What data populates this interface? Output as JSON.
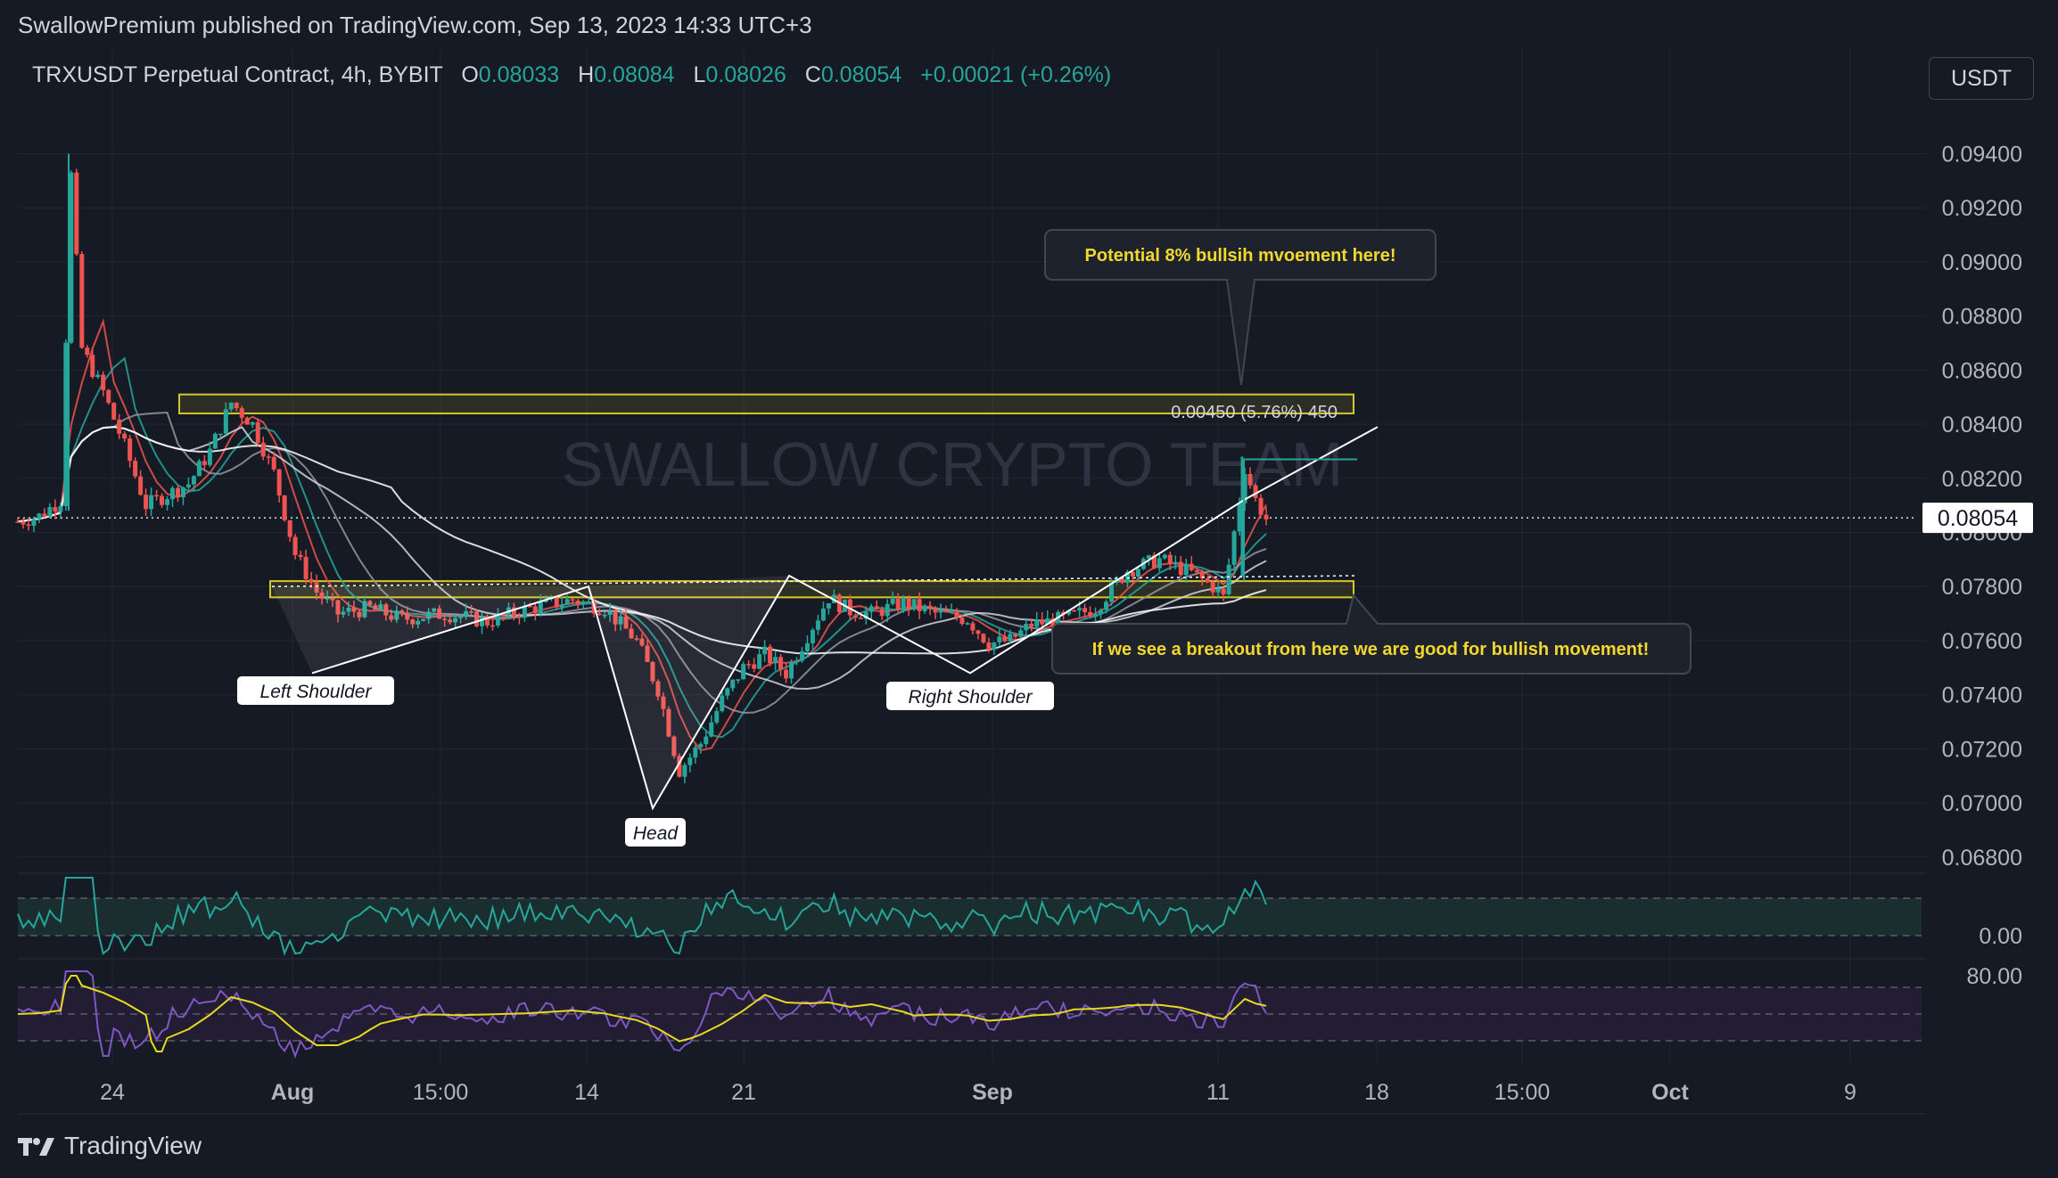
{
  "header": {
    "publisher": "SwallowPremium published on TradingView.com, Sep 13, 2023 14:33 UTC+3"
  },
  "symbol": {
    "title": "TRXUSDT Perpetual Contract, 4h, BYBIT",
    "o_label": "O",
    "o": "0.08033",
    "h_label": "H",
    "h": "0.08084",
    "l_label": "L",
    "l": "0.08026",
    "c_label": "C",
    "c": "0.08054",
    "change": "+0.00021 (+0.26%)"
  },
  "currency_button": "USDT",
  "footer": {
    "brand": "TradingView"
  },
  "colors": {
    "background": "#161a25",
    "up": "#26a69a",
    "down": "#ef5350",
    "zone": "#d4c82a",
    "annotation_text": "#f2d82c",
    "indicator1": "#26a69a",
    "indicator2_line": "#7e57c2",
    "indicator2_signal": "#e6d91f"
  },
  "chart_data": {
    "type": "candlestick",
    "title": "TRXUSDT Perpetual Contract, 4h, BYBIT",
    "watermark": "SWALLOW CRYPTO TEAM",
    "last_price": "0.08054",
    "y_ticks": [
      "0.09400",
      "0.09200",
      "0.09000",
      "0.08800",
      "0.08600",
      "0.08400",
      "0.08200",
      "0.08000",
      "0.07800",
      "0.07600",
      "0.07400",
      "0.07200",
      "0.07000",
      "0.06800"
    ],
    "ylim": [
      0.0674,
      0.0954
    ],
    "x_ticks": [
      "24",
      "Aug",
      "15:00",
      "14",
      "21",
      "Sep",
      "11",
      "18",
      "15:00",
      "Oct",
      "9"
    ],
    "price_path": [
      {
        "x": 0,
        "y": 0.0804
      },
      {
        "x": 2,
        "y": 0.0806
      },
      {
        "x": 4,
        "y": 0.0812
      },
      {
        "x": 5,
        "y": 0.0932
      },
      {
        "x": 6,
        "y": 0.0868
      },
      {
        "x": 8,
        "y": 0.0852
      },
      {
        "x": 10,
        "y": 0.0832
      },
      {
        "x": 12,
        "y": 0.081
      },
      {
        "x": 14,
        "y": 0.0814
      },
      {
        "x": 16,
        "y": 0.0818
      },
      {
        "x": 18,
        "y": 0.083
      },
      {
        "x": 20,
        "y": 0.0848
      },
      {
        "x": 22,
        "y": 0.084
      },
      {
        "x": 24,
        "y": 0.0822
      },
      {
        "x": 26,
        "y": 0.0792
      },
      {
        "x": 28,
        "y": 0.0778
      },
      {
        "x": 30,
        "y": 0.077
      },
      {
        "x": 33,
        "y": 0.0772
      },
      {
        "x": 36,
        "y": 0.0768
      },
      {
        "x": 40,
        "y": 0.077
      },
      {
        "x": 44,
        "y": 0.0767
      },
      {
        "x": 48,
        "y": 0.0772
      },
      {
        "x": 52,
        "y": 0.0775
      },
      {
        "x": 55,
        "y": 0.0772
      },
      {
        "x": 58,
        "y": 0.076
      },
      {
        "x": 60,
        "y": 0.0742
      },
      {
        "x": 62,
        "y": 0.0712
      },
      {
        "x": 64,
        "y": 0.0722
      },
      {
        "x": 66,
        "y": 0.0738
      },
      {
        "x": 68,
        "y": 0.075
      },
      {
        "x": 70,
        "y": 0.0755
      },
      {
        "x": 72,
        "y": 0.0748
      },
      {
        "x": 74,
        "y": 0.0762
      },
      {
        "x": 76,
        "y": 0.0776
      },
      {
        "x": 78,
        "y": 0.0771
      },
      {
        "x": 80,
        "y": 0.077
      },
      {
        "x": 83,
        "y": 0.0774
      },
      {
        "x": 86,
        "y": 0.077
      },
      {
        "x": 89,
        "y": 0.0768
      },
      {
        "x": 91,
        "y": 0.0759
      },
      {
        "x": 93,
        "y": 0.076
      },
      {
        "x": 95,
        "y": 0.0766
      },
      {
        "x": 98,
        "y": 0.0768
      },
      {
        "x": 101,
        "y": 0.0772
      },
      {
        "x": 104,
        "y": 0.0786
      },
      {
        "x": 107,
        "y": 0.079
      },
      {
        "x": 110,
        "y": 0.0785
      },
      {
        "x": 112,
        "y": 0.078
      },
      {
        "x": 113,
        "y": 0.0776
      },
      {
        "x": 114,
        "y": 0.08
      },
      {
        "x": 115,
        "y": 0.0824
      },
      {
        "x": 116,
        "y": 0.0812
      },
      {
        "x": 117,
        "y": 0.0805
      }
    ],
    "pattern": {
      "name": "inverse head and shoulders",
      "labels": [
        "Left Shoulder",
        "Head",
        "Right Shoulder"
      ],
      "neckline_from": 0.078,
      "neckline_to": 0.0784
    },
    "zones": [
      {
        "name": "target zone",
        "from": 0.0844,
        "to": 0.0851
      },
      {
        "name": "breakout zone",
        "from": 0.0776,
        "to": 0.0782
      }
    ],
    "measure_label": "0.00450 (5.76%) 450",
    "annotations": [
      "Potential 8% bullsih mvoement here!",
      "If we see a breakout from here we are good for bullish movement!"
    ],
    "indicator1": {
      "tick": "0.00"
    },
    "indicator2": {
      "tick": "80.00"
    }
  }
}
